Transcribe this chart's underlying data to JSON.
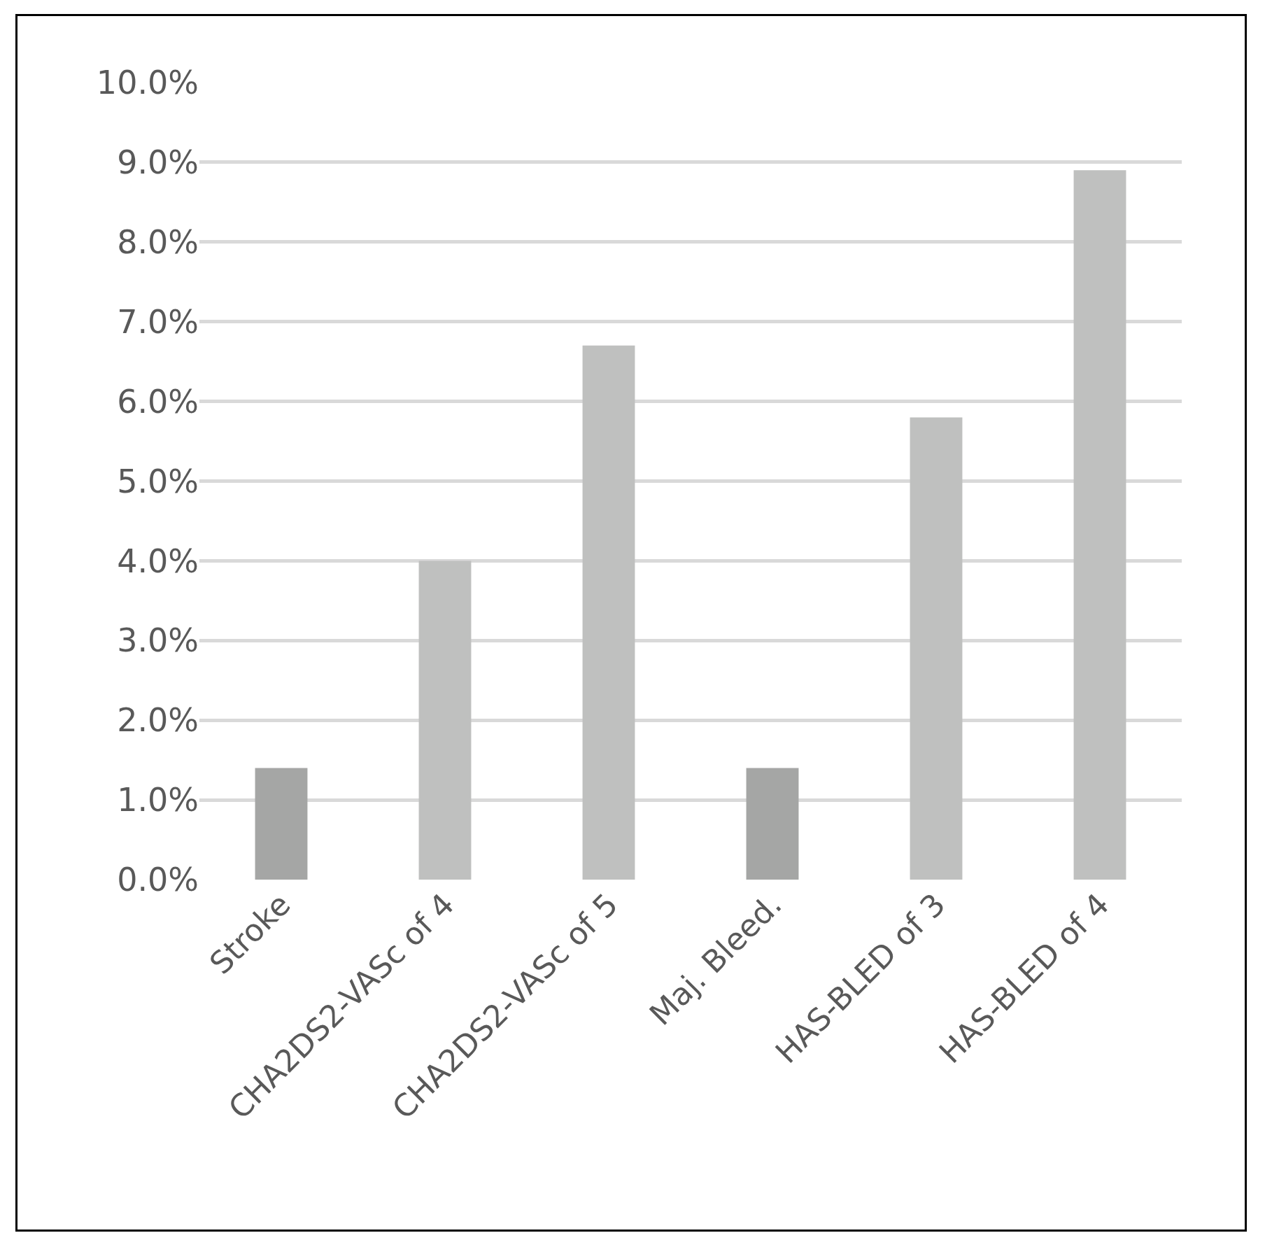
{
  "chart_data": {
    "type": "bar",
    "categories": [
      "Stroke",
      "CHA2DS2-VASc of 4",
      "CHA2DS2-VASc of 5",
      "Maj. Bleed.",
      "HAS-BLED of 3",
      "HAS-BLED of 4"
    ],
    "values": [
      1.4,
      4.0,
      6.7,
      1.4,
      5.8,
      8.9
    ],
    "colors": [
      "#a5a6a5",
      "#bfc0bf",
      "#bfc0bf",
      "#a5a6a5",
      "#bfc0bf",
      "#bfc0bf"
    ],
    "ylim": [
      0,
      10
    ],
    "yticks": [
      {
        "value": 0,
        "label": "0.0%"
      },
      {
        "value": 1,
        "label": "1.0%"
      },
      {
        "value": 2,
        "label": "2.0%"
      },
      {
        "value": 3,
        "label": "3.0%"
      },
      {
        "value": 4,
        "label": "4.0%"
      },
      {
        "value": 5,
        "label": "5.0%"
      },
      {
        "value": 6,
        "label": "6.0%"
      },
      {
        "value": 7,
        "label": "7.0%"
      },
      {
        "value": 8,
        "label": "8.0%"
      },
      {
        "value": 9,
        "label": "9.0%"
      },
      {
        "value": 10,
        "label": "10.0%"
      }
    ],
    "grid": "y",
    "legend": false
  }
}
